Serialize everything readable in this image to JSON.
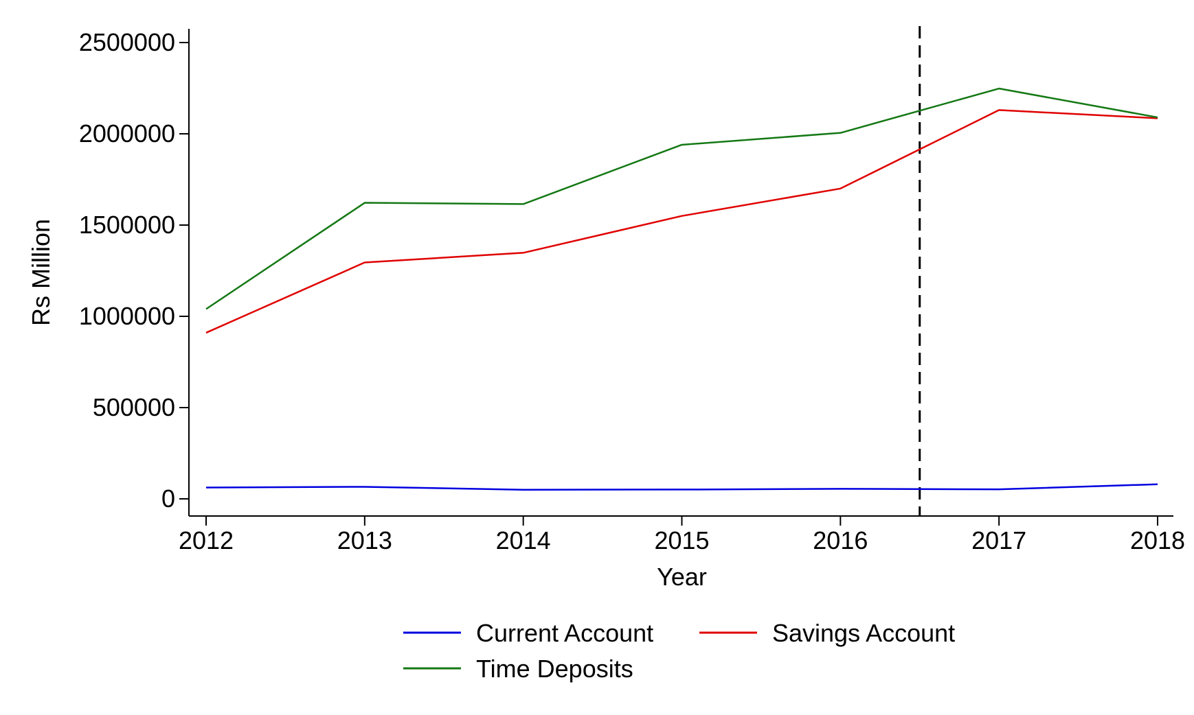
{
  "chart_data": {
    "type": "line",
    "title": "",
    "xlabel": "Year",
    "ylabel": "Rs Million",
    "x": [
      2012,
      2013,
      2014,
      2015,
      2016,
      2017,
      2018
    ],
    "xlim": [
      2012,
      2018
    ],
    "ylim": [
      0,
      2500000
    ],
    "xticks": [
      "2012",
      "2013",
      "2014",
      "2015",
      "2016",
      "2017",
      "2018"
    ],
    "yticks": [
      "0",
      "500000",
      "1000000",
      "1500000",
      "2000000",
      "2500000"
    ],
    "grid": false,
    "legend_position": "bottom",
    "reference_line": {
      "axis": "x",
      "value": 2016.5,
      "style": "dashed",
      "color": "#000000"
    },
    "series": [
      {
        "name": "Current Account",
        "color": "#0000e0",
        "values": [
          62000,
          66000,
          50000,
          51000,
          55000,
          52000,
          80000
        ]
      },
      {
        "name": "Savings Account",
        "color": "#e00000",
        "values": [
          910000,
          1295000,
          1348000,
          1550000,
          1700000,
          2130000,
          2085000
        ]
      },
      {
        "name": "Time Deposits",
        "color": "#147814",
        "values": [
          1040000,
          1622000,
          1615000,
          1940000,
          2005000,
          2248000,
          2090000
        ]
      }
    ]
  }
}
